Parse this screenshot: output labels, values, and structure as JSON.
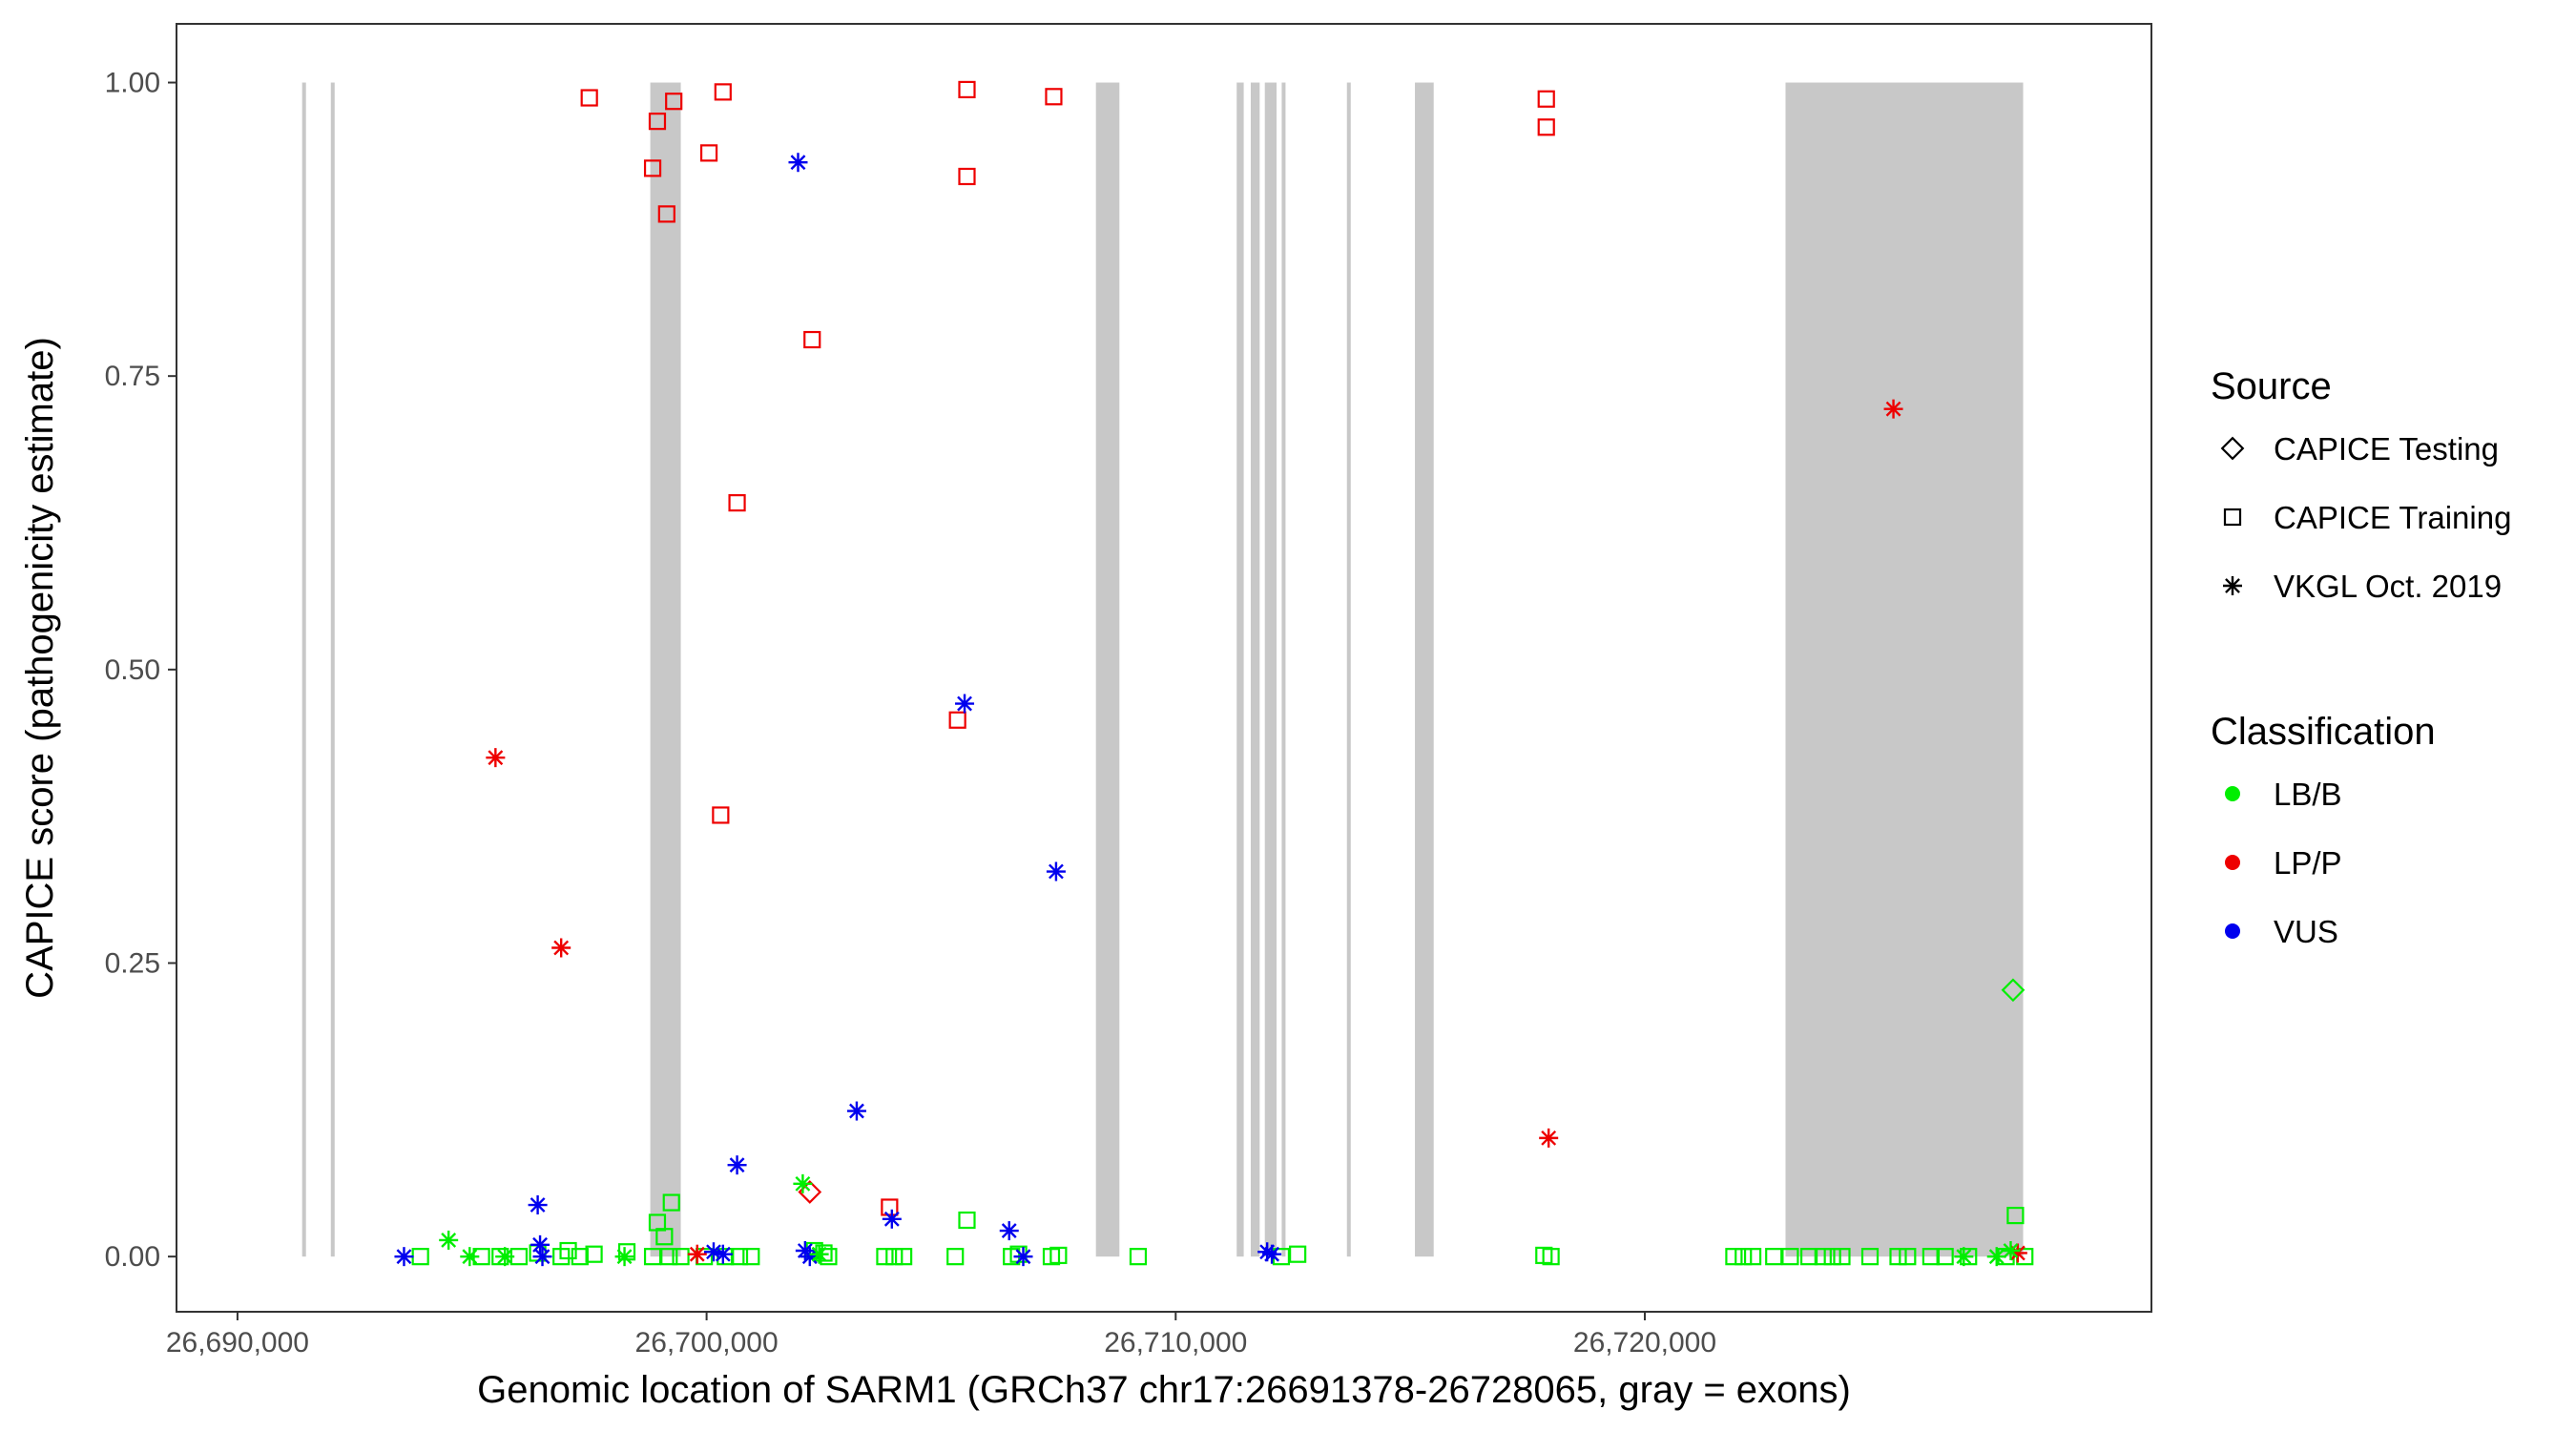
{
  "chart_data": {
    "type": "scatter",
    "title": "",
    "xlabel": "Genomic location of SARM1 (GRCh37 chr17:26691378-26728065, gray = exons)",
    "ylabel": "CAPICE score (pathogenicity estimate)",
    "xlim": [
      26688700,
      26730800
    ],
    "ylim": [
      -0.047,
      1.05
    ],
    "x_ticks": [
      26690000,
      26700000,
      26710000,
      26720000
    ],
    "x_tick_labels": [
      "26,690,000",
      "26,700,000",
      "26,710,000",
      "26,720,000"
    ],
    "y_ticks": [
      0,
      0.25,
      0.5,
      0.75,
      1.0
    ],
    "y_tick_labels": [
      "0.00",
      "0.25",
      "0.50",
      "0.75",
      "1.00"
    ],
    "grid": false,
    "exons": [
      [
        26691378,
        26691460
      ],
      [
        26691990,
        26692040
      ],
      [
        26698800,
        26699450
      ],
      [
        26708300,
        26708800
      ],
      [
        26711300,
        26711450
      ],
      [
        26711600,
        26711790
      ],
      [
        26711900,
        26712150
      ],
      [
        26712260,
        26712300
      ],
      [
        26713650,
        26713700
      ],
      [
        26715100,
        26715500
      ],
      [
        26723000,
        26728065
      ]
    ],
    "colors": {
      "LB/B": "#00ee00",
      "LP/P": "#ee0000",
      "VUS": "#0000ee",
      "exon": "#c8c8c8"
    },
    "legend_source": {
      "title": "Source",
      "position": "right",
      "items": [
        {
          "label": "CAPICE Testing",
          "shape": "diamond"
        },
        {
          "label": "CAPICE Training",
          "shape": "square"
        },
        {
          "label": "VKGL Oct. 2019",
          "shape": "asterisk"
        }
      ]
    },
    "legend_class": {
      "title": "Classification",
      "position": "right",
      "items": [
        {
          "label": "LB/B",
          "color": "#00ee00"
        },
        {
          "label": "LP/P",
          "color": "#ee0000"
        },
        {
          "label": "VUS",
          "color": "#0000ee"
        }
      ]
    },
    "series": [
      {
        "name": "CAPICE Training",
        "shape": "square",
        "class": "LP/P",
        "points": [
          [
            26697500,
            0.987
          ],
          [
            26698850,
            0.927
          ],
          [
            26698950,
            0.967
          ],
          [
            26699150,
            0.888
          ],
          [
            26699300,
            0.984
          ],
          [
            26700050,
            0.94
          ],
          [
            26700350,
            0.992
          ],
          [
            26700300,
            0.376
          ],
          [
            26700650,
            0.642
          ],
          [
            26702250,
            0.781
          ],
          [
            26703900,
            0.042
          ],
          [
            26705350,
            0.457
          ],
          [
            26705550,
            0.994
          ],
          [
            26705550,
            0.92
          ],
          [
            26707400,
            0.988
          ],
          [
            26717900,
            0.986
          ],
          [
            26717900,
            0.962
          ]
        ]
      },
      {
        "name": "CAPICE Training",
        "shape": "square",
        "class": "LB/B",
        "points": [
          [
            26693900,
            0.0
          ],
          [
            26695200,
            0.0
          ],
          [
            26695600,
            0.0
          ],
          [
            26696000,
            0.0
          ],
          [
            26696400,
            0.003
          ],
          [
            26696900,
            0.0
          ],
          [
            26697050,
            0.005
          ],
          [
            26697300,
            0.0
          ],
          [
            26697600,
            0.002
          ],
          [
            26698300,
            0.004
          ],
          [
            26698850,
            0.0
          ],
          [
            26698950,
            0.029
          ],
          [
            26699100,
            0.017
          ],
          [
            26699250,
            0.046
          ],
          [
            26699200,
            0.0
          ],
          [
            26699450,
            0.0
          ],
          [
            26699950,
            0.0
          ],
          [
            26700400,
            0.0
          ],
          [
            26700700,
            0.0
          ],
          [
            26700950,
            0.0
          ],
          [
            26702300,
            0.005
          ],
          [
            26702500,
            0.003
          ],
          [
            26702600,
            0.0
          ],
          [
            26703800,
            0.0
          ],
          [
            26704000,
            0.0
          ],
          [
            26704200,
            0.0
          ],
          [
            26705300,
            0.0
          ],
          [
            26705550,
            0.031
          ],
          [
            26706500,
            0.0
          ],
          [
            26706650,
            0.002
          ],
          [
            26707350,
            0.0
          ],
          [
            26707500,
            0.001
          ],
          [
            26709200,
            0.0
          ],
          [
            26712250,
            0.0
          ],
          [
            26712600,
            0.002
          ],
          [
            26717850,
            0.001
          ],
          [
            26718000,
            0.0
          ],
          [
            26721900,
            0.0
          ],
          [
            26722100,
            0.0
          ],
          [
            26722300,
            0.0
          ],
          [
            26722750,
            0.0
          ],
          [
            26723100,
            0.0
          ],
          [
            26723500,
            0.0
          ],
          [
            26723800,
            0.0
          ],
          [
            26724000,
            0.0
          ],
          [
            26724200,
            0.0
          ],
          [
            26724800,
            0.0
          ],
          [
            26725400,
            0.0
          ],
          [
            26725600,
            0.0
          ],
          [
            26726100,
            0.0
          ],
          [
            26726400,
            0.0
          ],
          [
            26726900,
            0.0
          ],
          [
            26727700,
            0.0
          ],
          [
            26727900,
            0.035
          ],
          [
            26728100,
            0.0
          ]
        ]
      },
      {
        "name": "CAPICE Testing",
        "shape": "diamond",
        "class": "LP/P",
        "points": [
          [
            26702200,
            0.055
          ]
        ]
      },
      {
        "name": "CAPICE Testing",
        "shape": "diamond",
        "class": "LB/B",
        "points": [
          [
            26727850,
            0.227
          ]
        ]
      },
      {
        "name": "VKGL Oct. 2019",
        "shape": "asterisk",
        "class": "LP/P",
        "points": [
          [
            26695500,
            0.425
          ],
          [
            26696900,
            0.263
          ],
          [
            26699800,
            0.002
          ],
          [
            26725300,
            0.722
          ],
          [
            26717950,
            0.101
          ],
          [
            26727950,
            0.003
          ]
        ]
      },
      {
        "name": "VKGL Oct. 2019",
        "shape": "asterisk",
        "class": "VUS",
        "points": [
          [
            26693550,
            0.0
          ],
          [
            26696400,
            0.044
          ],
          [
            26696450,
            0.01
          ],
          [
            26696500,
            0.0
          ],
          [
            26700150,
            0.004
          ],
          [
            26700350,
            0.002
          ],
          [
            26700650,
            0.078
          ],
          [
            26701950,
            0.932
          ],
          [
            26702100,
            0.005
          ],
          [
            26702200,
            0.0
          ],
          [
            26703200,
            0.124
          ],
          [
            26703950,
            0.032
          ],
          [
            26705500,
            0.471
          ],
          [
            26706450,
            0.022
          ],
          [
            26706750,
            0.0
          ],
          [
            26707450,
            0.328
          ],
          [
            26711950,
            0.004
          ],
          [
            26712050,
            0.002
          ]
        ]
      },
      {
        "name": "VKGL Oct. 2019",
        "shape": "asterisk",
        "class": "LB/B",
        "points": [
          [
            26694500,
            0.014
          ],
          [
            26694950,
            0.0
          ],
          [
            26695700,
            0.0
          ],
          [
            26698250,
            0.0
          ],
          [
            26702050,
            0.062
          ],
          [
            26702400,
            0.002
          ],
          [
            26726800,
            0.0
          ],
          [
            26727500,
            0.0
          ],
          [
            26727800,
            0.005
          ]
        ]
      }
    ]
  }
}
